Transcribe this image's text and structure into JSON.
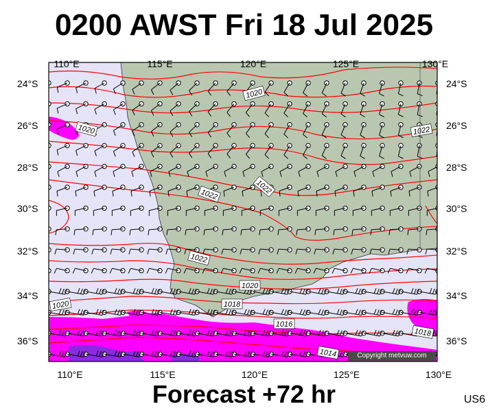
{
  "header": {
    "title": "0200 AWST Fri 18 Jul 2025"
  },
  "footer": {
    "forecast": "Forecast +72 hr",
    "code": "US6"
  },
  "map": {
    "lon_ticks": [
      "110°E",
      "115°E",
      "120°E",
      "125°E",
      "130°E"
    ],
    "lat_ticks": [
      "24°S",
      "26°S",
      "28°S",
      "30°S",
      "32°S",
      "34°S",
      "36°S"
    ],
    "isobar_labels": [
      "1020",
      "1020",
      "1022",
      "1022",
      "1022",
      "1022",
      "1020",
      "1020",
      "1018",
      "1016",
      "1018",
      "1014"
    ],
    "copyright": "Copyright metvuw.com",
    "colors": {
      "sea": "#e4e4f6",
      "land": "#b9c7b1",
      "isobar": "#ff0000",
      "strong_wind": "#ff00ff",
      "gale": "#8a2be2"
    }
  }
}
